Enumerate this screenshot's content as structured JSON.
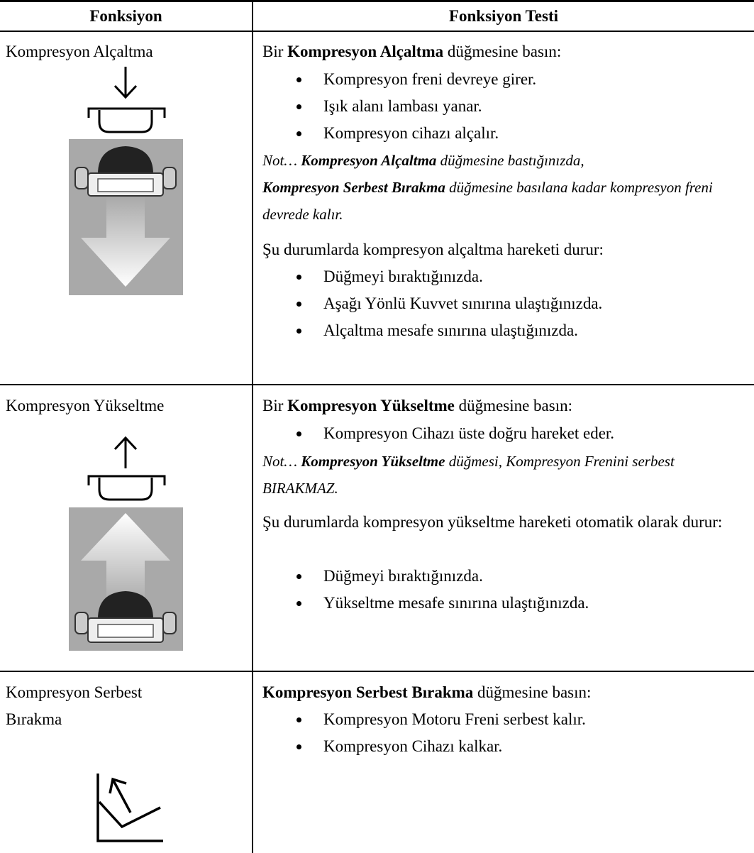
{
  "table": {
    "headers": [
      "Fonksiyon",
      "Fonksiyon Testi"
    ],
    "rows": [
      {
        "function": "Kompresyon Alçaltma",
        "intro": [
          "Bir ",
          "Kompresyon Alçaltma",
          " düğmesine basın:"
        ],
        "bullets": [
          "Kompresyon freni devreye girer.",
          "Işık alanı lambası yanar.",
          "Kompresyon cihazı alçalır."
        ],
        "note": [
          "Not… ",
          "Kompresyon Alçaltma",
          " düğmesine bastığınızda,",
          "Kompresyon Serbest Bırakma",
          " düğmesine basılana kadar kompresyon freni devrede kalır."
        ],
        "condition": "Şu durumlarda kompresyon alçaltma hareketi durur:",
        "condition_bullets": [
          "Düğmeyi bıraktığınızda.",
          "Aşağı Yönlü Kuvvet sınırına ulaştığınızda.",
          "Alçaltma mesafe sınırına ulaştığınızda."
        ]
      },
      {
        "function": "Kompresyon Yükseltme",
        "intro": [
          "Bir ",
          "Kompresyon Yükseltme",
          " düğmesine basın:"
        ],
        "bullets": [
          "Kompresyon Cihazı üste doğru hareket eder."
        ],
        "note": [
          "Not… ",
          "Kompresyon Yükseltme",
          " düğmesi, Kompresyon Frenini serbest BIRAKMAZ."
        ],
        "condition": "Şu durumlarda kompresyon yükseltme hareketi otomatik olarak durur:",
        "condition_bullets": [
          "Düğmeyi bıraktığınızda.",
          "Yükseltme mesafe sınırına ulaştığınızda."
        ]
      },
      {
        "function": "Kompresyon Serbest Bırakma",
        "intro": [
          "Kompresyon Serbest Bırakma",
          " düğmesine basın:"
        ],
        "bullets": [
          "Kompresyon Motoru Freni serbest kalır.",
          "Kompresyon Cihazı kalkar."
        ]
      }
    ]
  }
}
